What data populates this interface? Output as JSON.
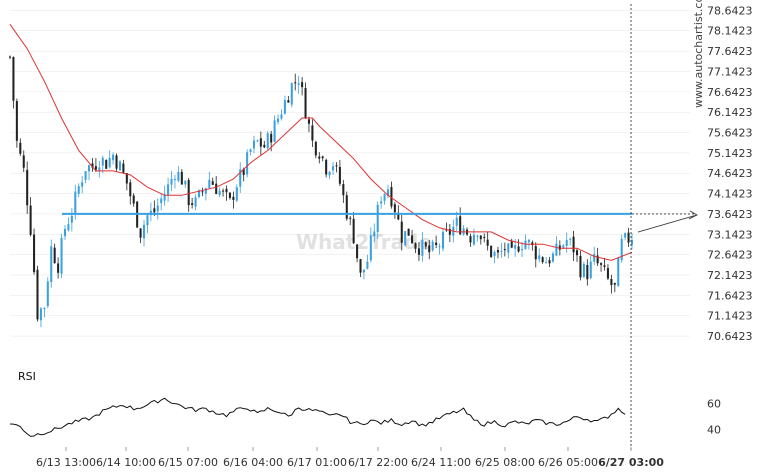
{
  "watermark": "www.autochartist.com",
  "logo_text": "What2Trade",
  "colors": {
    "bull": "#3aa0e0",
    "bear": "#222222",
    "ma": "#e03030",
    "level": "#3aa0e0",
    "rsi": "#111111",
    "grid": "#e6e6e6"
  },
  "chart_data": {
    "type": "candlestick",
    "y_ticks": [
      "78.6423",
      "78.1423",
      "77.6423",
      "77.1423",
      "76.6423",
      "76.1423",
      "75.6423",
      "75.1423",
      "74.6423",
      "74.1423",
      "73.6423",
      "73.1423",
      "72.6423",
      "72.1423",
      "71.6423",
      "71.1423",
      "70.6423"
    ],
    "ylim": [
      70.3,
      78.75
    ],
    "x_ticks": [
      "6/13 13:00",
      "6/14 10:00",
      "6/15 07:00",
      "6/16 04:00",
      "6/17 01:00",
      "6/17 22:00",
      "6/24 11:00",
      "6/25 08:00",
      "6/26 05:00",
      "6/27 03:00"
    ],
    "level": 73.6423,
    "candle_count": 182,
    "close_path": [
      [
        0,
        77.5
      ],
      [
        2,
        75.4
      ],
      [
        4,
        74.7
      ],
      [
        6,
        73.3
      ],
      [
        8,
        71.2
      ],
      [
        10,
        71.4
      ],
      [
        12,
        72.8
      ],
      [
        14,
        72.4
      ],
      [
        16,
        73.3
      ],
      [
        18,
        73.7
      ],
      [
        20,
        74.3
      ],
      [
        22,
        74.8
      ],
      [
        24,
        74.8
      ],
      [
        26,
        75.0
      ],
      [
        28,
        74.9
      ],
      [
        30,
        75.1
      ],
      [
        32,
        74.8
      ],
      [
        34,
        74.4
      ],
      [
        36,
        73.8
      ],
      [
        38,
        73.2
      ],
      [
        40,
        73.6
      ],
      [
        42,
        73.7
      ],
      [
        44,
        74.0
      ],
      [
        46,
        74.3
      ],
      [
        48,
        74.7
      ],
      [
        50,
        74.5
      ],
      [
        52,
        74.0
      ],
      [
        54,
        73.9
      ],
      [
        56,
        74.2
      ],
      [
        58,
        74.5
      ],
      [
        60,
        74.3
      ],
      [
        62,
        74.1
      ],
      [
        64,
        73.9
      ],
      [
        66,
        74.4
      ],
      [
        68,
        74.7
      ],
      [
        70,
        75.2
      ],
      [
        72,
        75.4
      ],
      [
        74,
        75.3
      ],
      [
        76,
        75.6
      ],
      [
        78,
        76.0
      ],
      [
        80,
        76.4
      ],
      [
        82,
        76.8
      ],
      [
        84,
        77.0
      ],
      [
        86,
        76.2
      ],
      [
        88,
        75.4
      ],
      [
        90,
        75.2
      ],
      [
        92,
        74.8
      ],
      [
        94,
        74.9
      ],
      [
        96,
        74.4
      ],
      [
        98,
        73.7
      ],
      [
        100,
        73.1
      ],
      [
        102,
        72.1
      ],
      [
        104,
        72.5
      ],
      [
        106,
        73.3
      ],
      [
        108,
        74.1
      ],
      [
        110,
        74.3
      ],
      [
        112,
        73.8
      ],
      [
        114,
        73.1
      ],
      [
        116,
        73.2
      ],
      [
        118,
        72.9
      ],
      [
        120,
        72.8
      ],
      [
        122,
        72.7
      ],
      [
        124,
        72.8
      ],
      [
        126,
        73.0
      ],
      [
        128,
        73.2
      ],
      [
        130,
        73.4
      ],
      [
        132,
        73.3
      ],
      [
        134,
        73.1
      ],
      [
        136,
        73.3
      ],
      [
        138,
        72.9
      ],
      [
        140,
        72.7
      ],
      [
        142,
        72.6
      ],
      [
        144,
        72.8
      ],
      [
        146,
        72.6
      ],
      [
        148,
        72.9
      ],
      [
        150,
        73.0
      ],
      [
        152,
        72.8
      ],
      [
        154,
        72.6
      ],
      [
        156,
        72.5
      ],
      [
        158,
        72.6
      ],
      [
        160,
        72.8
      ],
      [
        162,
        73.0
      ],
      [
        164,
        72.8
      ],
      [
        166,
        72.3
      ],
      [
        168,
        72.2
      ],
      [
        170,
        72.5
      ],
      [
        172,
        72.3
      ],
      [
        174,
        72.0
      ],
      [
        176,
        71.8
      ],
      [
        178,
        72.9
      ],
      [
        181,
        73.1
      ]
    ],
    "ma_path": [
      [
        0,
        78.3
      ],
      [
        5,
        77.7
      ],
      [
        10,
        76.9
      ],
      [
        15,
        76.0
      ],
      [
        20,
        75.2
      ],
      [
        25,
        74.7
      ],
      [
        30,
        74.7
      ],
      [
        35,
        74.6
      ],
      [
        40,
        74.3
      ],
      [
        45,
        74.1
      ],
      [
        50,
        74.1
      ],
      [
        55,
        74.2
      ],
      [
        60,
        74.3
      ],
      [
        65,
        74.5
      ],
      [
        70,
        74.9
      ],
      [
        75,
        75.2
      ],
      [
        80,
        75.6
      ],
      [
        85,
        76.0
      ],
      [
        88,
        76.0
      ],
      [
        90,
        75.8
      ],
      [
        95,
        75.4
      ],
      [
        100,
        75.0
      ],
      [
        105,
        74.5
      ],
      [
        110,
        74.1
      ],
      [
        115,
        73.8
      ],
      [
        120,
        73.5
      ],
      [
        125,
        73.3
      ],
      [
        130,
        73.2
      ],
      [
        135,
        73.2
      ],
      [
        140,
        73.2
      ],
      [
        145,
        73.0
      ],
      [
        150,
        72.9
      ],
      [
        155,
        72.9
      ],
      [
        160,
        72.8
      ],
      [
        165,
        72.8
      ],
      [
        170,
        72.6
      ],
      [
        175,
        72.5
      ],
      [
        181,
        72.7
      ]
    ],
    "rsi": {
      "label": "RSI",
      "y_ticks": [
        60,
        40
      ],
      "ylim": [
        28,
        72
      ],
      "path": [
        [
          0,
          45
        ],
        [
          3,
          42
        ],
        [
          6,
          35
        ],
        [
          9,
          37
        ],
        [
          12,
          39
        ],
        [
          15,
          42
        ],
        [
          18,
          45
        ],
        [
          21,
          47
        ],
        [
          24,
          49
        ],
        [
          27,
          54
        ],
        [
          30,
          57
        ],
        [
          33,
          59
        ],
        [
          36,
          56
        ],
        [
          39,
          58
        ],
        [
          42,
          61
        ],
        [
          45,
          64
        ],
        [
          48,
          60
        ],
        [
          51,
          57
        ],
        [
          54,
          55
        ],
        [
          57,
          56
        ],
        [
          60,
          53
        ],
        [
          63,
          51
        ],
        [
          66,
          55
        ],
        [
          69,
          57
        ],
        [
          72,
          52
        ],
        [
          75,
          56
        ],
        [
          78,
          54
        ],
        [
          81,
          50
        ],
        [
          84,
          57
        ],
        [
          87,
          55
        ],
        [
          90,
          54
        ],
        [
          93,
          50
        ],
        [
          96,
          52
        ],
        [
          99,
          46
        ],
        [
          102,
          44
        ],
        [
          105,
          47
        ],
        [
          108,
          45
        ],
        [
          111,
          47
        ],
        [
          114,
          44
        ],
        [
          117,
          47
        ],
        [
          120,
          43
        ],
        [
          123,
          46
        ],
        [
          126,
          50
        ],
        [
          129,
          53
        ],
        [
          132,
          55
        ],
        [
          135,
          47
        ],
        [
          138,
          44
        ],
        [
          141,
          46
        ],
        [
          144,
          43
        ],
        [
          147,
          46
        ],
        [
          150,
          44
        ],
        [
          153,
          47
        ],
        [
          156,
          45
        ],
        [
          159,
          44
        ],
        [
          162,
          46
        ],
        [
          165,
          50
        ],
        [
          168,
          48
        ],
        [
          171,
          46
        ],
        [
          174,
          50
        ],
        [
          177,
          56
        ],
        [
          179,
          53
        ]
      ]
    }
  }
}
